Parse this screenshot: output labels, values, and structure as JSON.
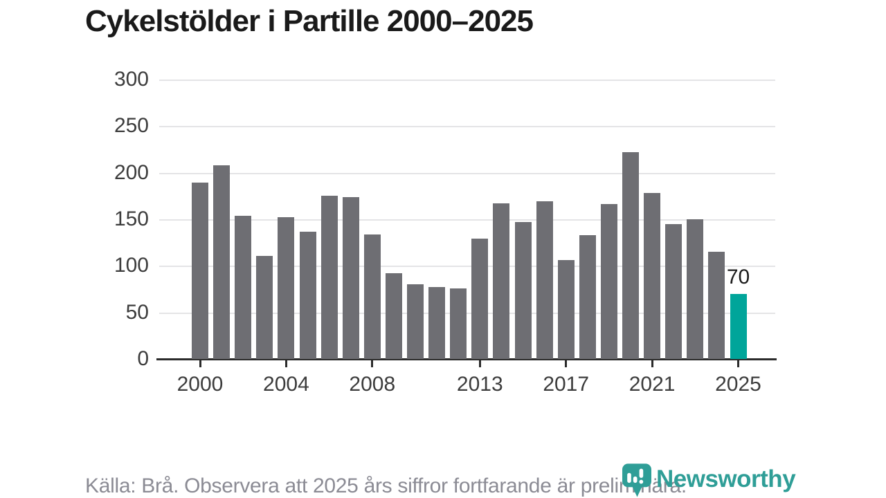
{
  "header": {
    "title": "Cykelstölder i Partille 2000–2025"
  },
  "chart_data": {
    "type": "bar",
    "title": "Cykelstölder i Partille 2000–2025",
    "categories": [
      2000,
      2001,
      2002,
      2003,
      2004,
      2005,
      2006,
      2007,
      2008,
      2009,
      2010,
      2011,
      2012,
      2013,
      2014,
      2015,
      2016,
      2017,
      2018,
      2019,
      2020,
      2021,
      2022,
      2023,
      2024,
      2025
    ],
    "values": [
      189,
      208,
      154,
      111,
      152,
      137,
      175,
      174,
      134,
      92,
      80,
      77,
      76,
      129,
      167,
      147,
      169,
      106,
      133,
      166,
      222,
      178,
      145,
      150,
      115,
      70
    ],
    "xlabel": "",
    "ylabel": "",
    "ylim": [
      0,
      300
    ],
    "yticks": [
      0,
      50,
      100,
      150,
      200,
      250,
      300
    ],
    "xticks": [
      2000,
      2004,
      2008,
      2013,
      2017,
      2021,
      2025
    ],
    "grid": "horizontal",
    "legend": "none",
    "bar_color": "#6e6e73",
    "grid_color": "#e4e4e6",
    "axis_color": "#2b2b2b",
    "highlight": {
      "year": 2025,
      "value": 70,
      "label": "70",
      "color": "#00a59a"
    }
  },
  "footer": {
    "source_note": "Källa: Brå. Observera att 2025 års siffror fortfarande är preliminära.",
    "brand_wordmark": "Newsworthy",
    "brand_color": "#2f9e97"
  }
}
